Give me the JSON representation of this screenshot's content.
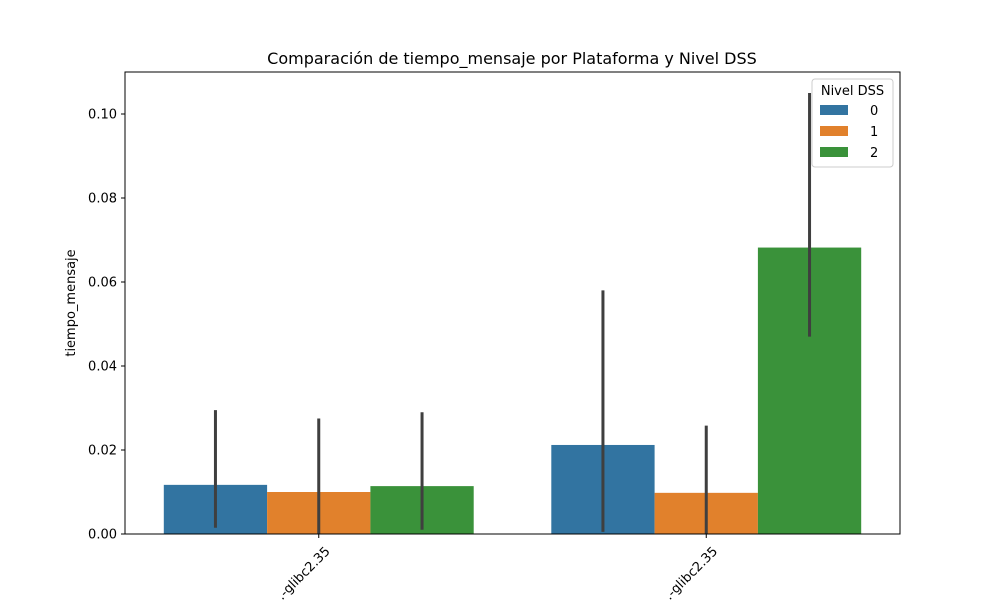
{
  "chart_data": {
    "type": "bar",
    "title": "Comparación de tiempo_mensaje por Plataforma y Nivel DSS",
    "xlabel": "",
    "ylabel": "tiempo_mensaje",
    "ylim": [
      0,
      0.11
    ],
    "yticks": [
      "0.00",
      "0.02",
      "0.04",
      "0.06",
      "0.08",
      "0.10"
    ],
    "categories": [
      "…-glibc2.35",
      "…-glibc2.35"
    ],
    "legend": {
      "title": "Nivel DSS",
      "position": "top-right"
    },
    "series": [
      {
        "name": "0",
        "color": "#3274a1",
        "values": [
          0.0117,
          0.0212
        ],
        "err_low": [
          0.0015,
          0.0005
        ],
        "err_high": [
          0.0295,
          0.058
        ]
      },
      {
        "name": "1",
        "color": "#e1812c",
        "values": [
          0.01,
          0.0098
        ],
        "err_low": [
          0.0,
          0.0
        ],
        "err_high": [
          0.0275,
          0.0258
        ]
      },
      {
        "name": "2",
        "color": "#3a923a",
        "values": [
          0.0114,
          0.0682
        ],
        "err_low": [
          0.001,
          0.047
        ],
        "err_high": [
          0.029,
          0.105
        ]
      }
    ]
  }
}
